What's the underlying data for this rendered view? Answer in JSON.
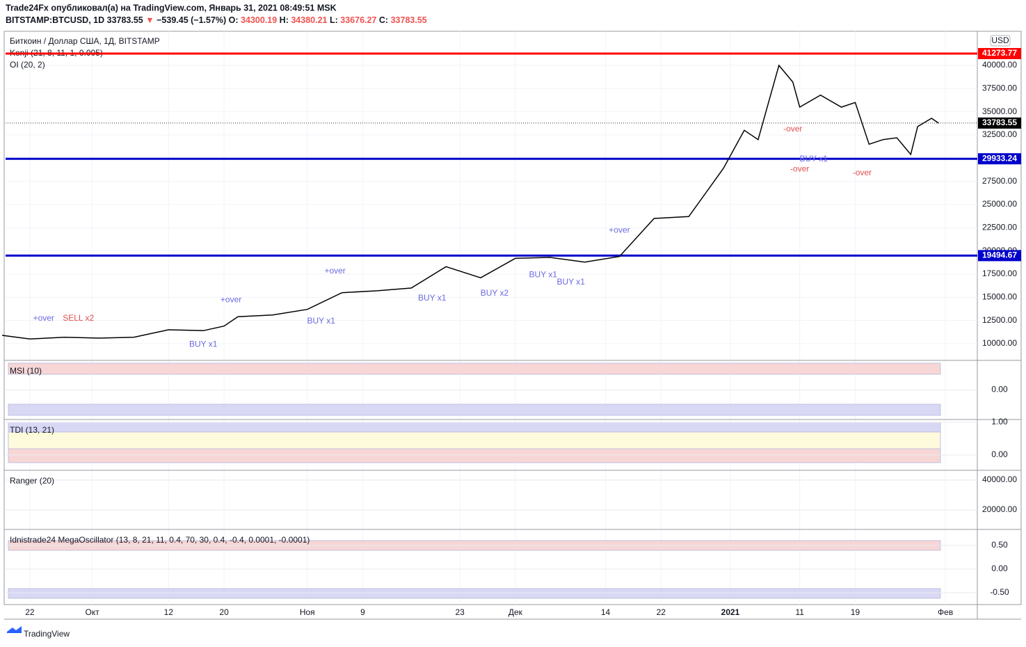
{
  "header": {
    "publisher": "Trade24Fx опубликовал(а) на TradingView.com, Январь 31, 2021 08:49:51 MSK",
    "symbol": "BITSTAMP:BTCUSD, 1D",
    "last": "33783.55",
    "arrow": "▼",
    "change": "−539.45 (−1.57%)",
    "ohlc": [
      {
        "label": "O:",
        "value": "34300.19"
      },
      {
        "label": "H:",
        "value": "34380.21"
      },
      {
        "label": "L:",
        "value": "33676.27"
      },
      {
        "label": "C:",
        "value": "33783.55"
      }
    ]
  },
  "footer": "TradingView",
  "chart_data": {
    "type": "line",
    "legend": [
      "Биткоин / Доллар США, 1Д, BITSTAMP",
      "Kenji (21, 8, 11, 1, 0.005)",
      "OI (20, 2)"
    ],
    "currency": "USD",
    "color": "#000000",
    "x": [
      -4,
      0,
      5,
      10,
      15,
      20,
      25,
      28,
      30,
      35,
      40,
      45,
      50,
      55,
      60,
      65,
      70,
      75,
      80,
      85,
      90,
      95,
      100,
      103,
      105,
      108,
      110,
      111,
      114,
      117,
      119,
      121,
      123,
      125,
      127,
      128,
      130,
      131
    ],
    "values": [
      10900,
      10500,
      10700,
      10600,
      10700,
      11500,
      11400,
      11900,
      12900,
      13100,
      13700,
      15500,
      15700,
      16000,
      18300,
      17100,
      19200,
      19300,
      18800,
      19400,
      23500,
      23700,
      28900,
      33000,
      32000,
      40000,
      38200,
      35500,
      36800,
      35500,
      36000,
      31500,
      32000,
      32200,
      30400,
      33400,
      34300,
      33783.55
    ],
    "xlim": [
      -3.5,
      136.6
    ],
    "ylim": [
      8275,
      43675
    ],
    "xticks": [
      {
        "value": 0,
        "label": "22"
      },
      {
        "value": 9,
        "label": "Окт"
      },
      {
        "value": 20,
        "label": "12"
      },
      {
        "value": 28,
        "label": "20"
      },
      {
        "value": 40,
        "label": "Ноя"
      },
      {
        "value": 48,
        "label": "9"
      },
      {
        "value": 62,
        "label": "23"
      },
      {
        "value": 70,
        "label": "Дек"
      },
      {
        "value": 83,
        "label": "14"
      },
      {
        "value": 91,
        "label": "22"
      },
      {
        "value": 101,
        "label": "2021"
      },
      {
        "value": 111,
        "label": "11"
      },
      {
        "value": 119,
        "label": "19"
      },
      {
        "value": 132,
        "label": "Фев"
      }
    ],
    "yticks": [
      {
        "value": 10000,
        "label": "10000.00"
      },
      {
        "value": 12500,
        "label": "12500.00"
      },
      {
        "value": 15000,
        "label": "15000.00"
      },
      {
        "value": 17500,
        "label": "17500.00"
      },
      {
        "value": 20000,
        "label": "20000.00"
      },
      {
        "value": 22500,
        "label": "22500.00"
      },
      {
        "value": 25000,
        "label": "25000.00"
      },
      {
        "value": 27500,
        "label": "27500.00"
      },
      {
        "value": 30000,
        "label": "30000.00"
      },
      {
        "value": 32500,
        "label": "32500.00"
      },
      {
        "value": 35000,
        "label": "35000.00"
      },
      {
        "value": 37500,
        "label": "37500.00"
      },
      {
        "value": 40000,
        "label": "40000.00"
      }
    ],
    "levels": [
      {
        "value": 41273.77,
        "color": "#ff0000"
      },
      {
        "value": 29933.24,
        "color": "#0000cc"
      },
      {
        "value": 19494.67,
        "color": "#0000cc"
      }
    ],
    "annotations": [
      {
        "text": "+over",
        "x": 2,
        "y": 12700,
        "color": "#6a6ae0"
      },
      {
        "text": "SELL x2",
        "x": 7,
        "y": 12700,
        "color": "#e05050"
      },
      {
        "text": "BUY x1",
        "x": 25,
        "y": 9900,
        "color": "#6a6ae0"
      },
      {
        "text": "+over",
        "x": 29,
        "y": 14700,
        "color": "#6a6ae0"
      },
      {
        "text": "BUY x1",
        "x": 42,
        "y": 12400,
        "color": "#6a6ae0"
      },
      {
        "text": "+over",
        "x": 44,
        "y": 17800,
        "color": "#6a6ae0"
      },
      {
        "text": "BUY x1",
        "x": 58,
        "y": 14900,
        "color": "#6a6ae0"
      },
      {
        "text": "BUY x2",
        "x": 67,
        "y": 15400,
        "color": "#6a6ae0"
      },
      {
        "text": "BUY x1",
        "x": 74,
        "y": 17400,
        "color": "#6a6ae0"
      },
      {
        "text": "BUY x1",
        "x": 78,
        "y": 16600,
        "color": "#6a6ae0"
      },
      {
        "text": "+over",
        "x": 85,
        "y": 22200,
        "color": "#6a6ae0"
      },
      {
        "text": "-over",
        "x": 110,
        "y": 33100,
        "color": "#e05050"
      },
      {
        "text": "BUY x1",
        "x": 113,
        "y": 29900,
        "color": "#6a6ae0"
      },
      {
        "text": "-over",
        "x": 111,
        "y": 28800,
        "color": "#e05050"
      },
      {
        "text": "-over",
        "x": 120,
        "y": 28400,
        "color": "#e05050"
      }
    ],
    "panes": [
      {
        "title": "MSI (10)",
        "ylim": [
          -1,
          1
        ],
        "yticks": [
          {
            "value": 0,
            "label": "0.00"
          }
        ]
      },
      {
        "title": "TDI (13, 21)",
        "ylim": [
          -0.447,
          1.064
        ],
        "yticks": [
          {
            "value": 1,
            "label": "1.00"
          },
          {
            "value": 0,
            "label": "0.00"
          }
        ]
      },
      {
        "title": "Ranger (20)",
        "ylim": [
          7442,
          46047
        ],
        "yticks": [
          {
            "value": 40000,
            "label": "40000.00"
          },
          {
            "value": 20000,
            "label": "20000.00"
          }
        ]
      },
      {
        "title": "Idnistrade24 MegaOscillator (13, 8, 21, 11, 0.4, 70, 30, 0.4, -0.4, 0.0001, -0.0001)",
        "ylim": [
          -0.735,
          0.824
        ],
        "yticks": [
          {
            "value": 0.5,
            "label": "0.50"
          },
          {
            "value": 0,
            "label": "0.00"
          },
          {
            "value": -0.5,
            "label": "-0.50"
          }
        ]
      }
    ]
  }
}
